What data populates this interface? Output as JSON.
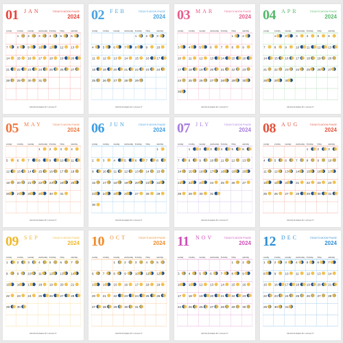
{
  "year": "2024",
  "moon_phase_caption": "TODAY'S MOON PHASE",
  "footer_credit": "MOON PHASES BY LOCALITY",
  "weekdays": [
    "sunday",
    "monday",
    "tuesday",
    "wednesday",
    "thursday",
    "friday",
    "saturday"
  ],
  "months": [
    {
      "number": "01",
      "name": "JAN",
      "color": "#e8453c",
      "days": 31,
      "start": 1
    },
    {
      "number": "02",
      "name": "FEB",
      "color": "#4aa3e0",
      "days": 29,
      "start": 4
    },
    {
      "number": "03",
      "name": "MAR",
      "color": "#e85c8a",
      "days": 31,
      "start": 5
    },
    {
      "number": "04",
      "name": "APR",
      "color": "#56b86a",
      "days": 30,
      "start": 1
    },
    {
      "number": "05",
      "name": "MAY",
      "color": "#f07840",
      "days": 31,
      "start": 3
    },
    {
      "number": "06",
      "name": "JUN",
      "color": "#3c9ee6",
      "days": 30,
      "start": 6
    },
    {
      "number": "07",
      "name": "JLY",
      "color": "#a77be0",
      "days": 31,
      "start": 1
    },
    {
      "number": "08",
      "name": "AUG",
      "color": "#e4523c",
      "days": 31,
      "start": 4
    },
    {
      "number": "09",
      "name": "SEP",
      "color": "#f0b82c",
      "days": 30,
      "start": 0
    },
    {
      "number": "10",
      "name": "OCT",
      "color": "#f08c2c",
      "days": 31,
      "start": 2
    },
    {
      "number": "11",
      "name": "NOV",
      "color": "#d04fb8",
      "days": 30,
      "start": 5
    },
    {
      "number": "12",
      "name": "DEC",
      "color": "#2e8fd6",
      "days": 31,
      "start": 0
    }
  ]
}
